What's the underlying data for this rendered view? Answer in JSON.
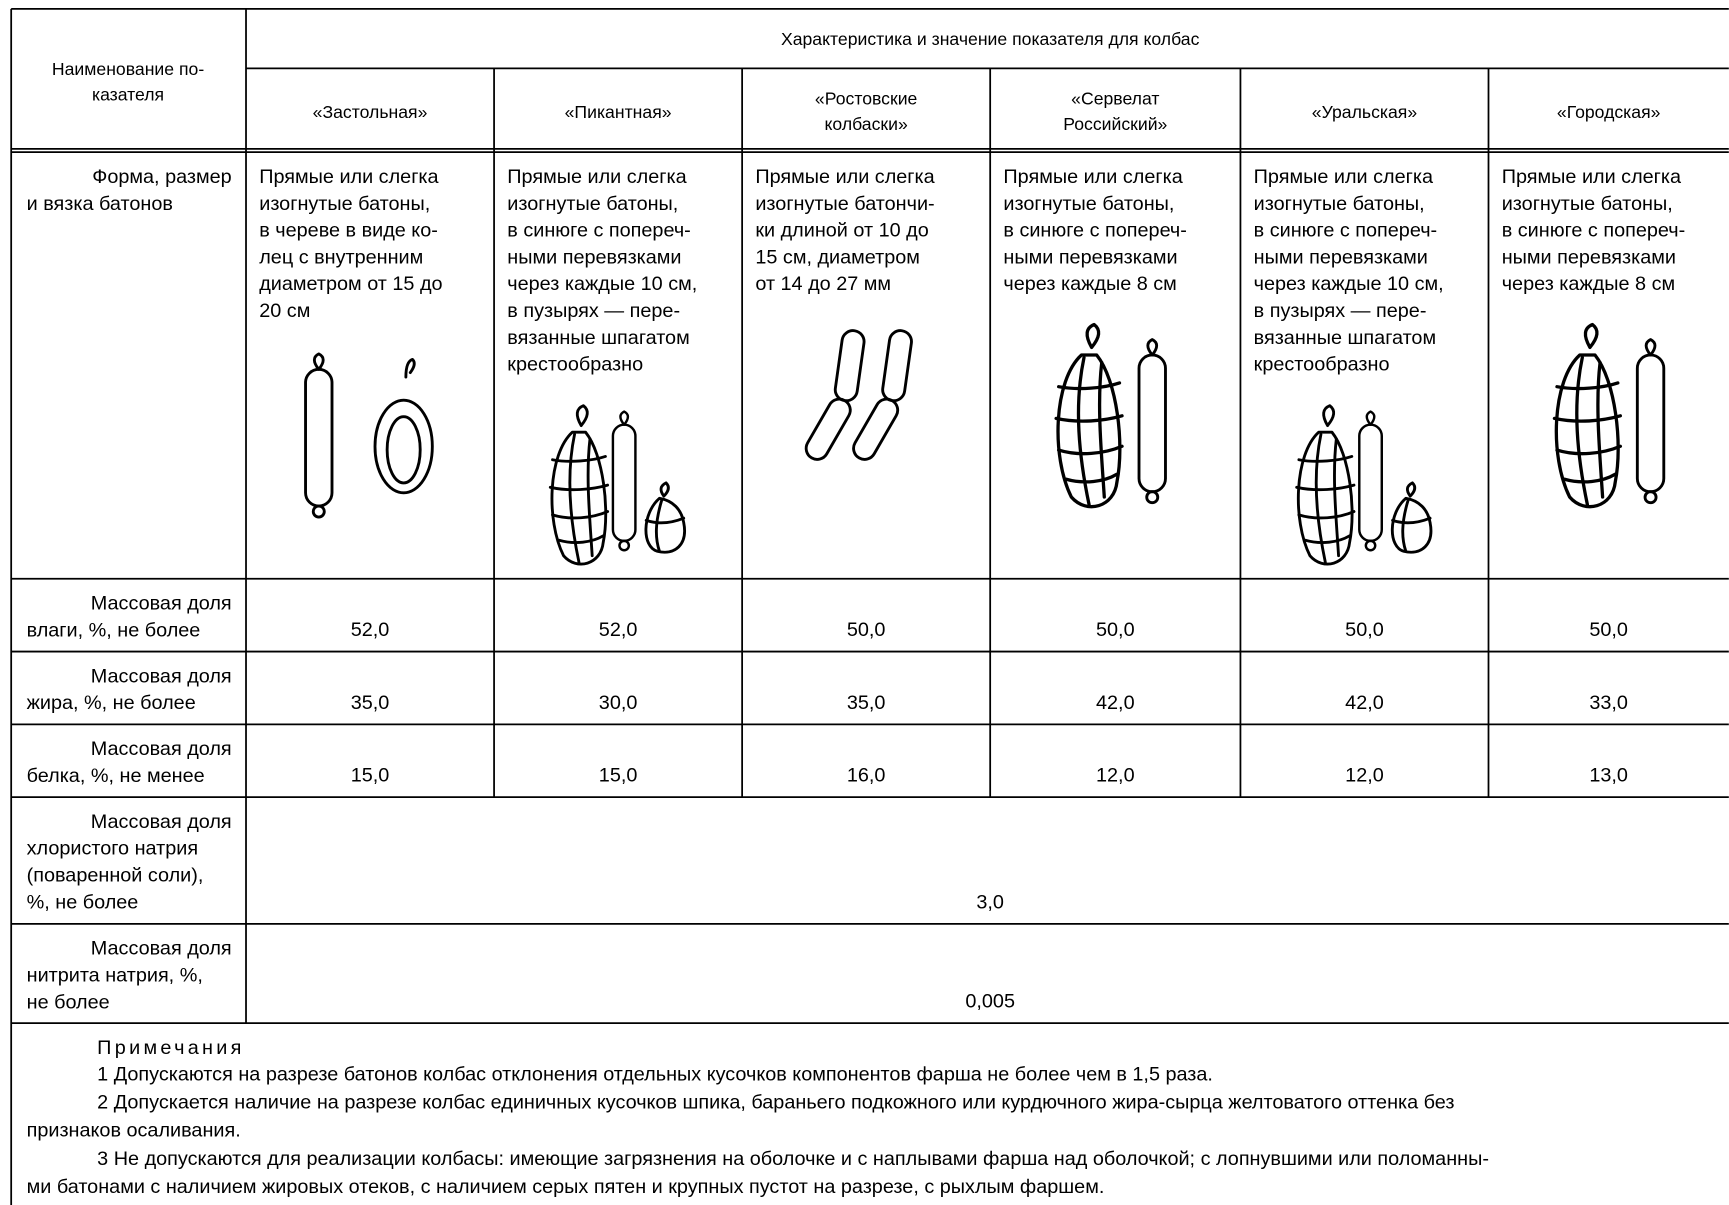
{
  "table": {
    "header": {
      "row_label": [
        "Наименование по-",
        "казателя"
      ],
      "group": "Характеристика и значение показателя для колбас",
      "columns": [
        [
          "«Застольная»"
        ],
        [
          "«Пикантная»"
        ],
        [
          "«Ростовские",
          "колбаски»"
        ],
        [
          "«Сервелат",
          "Российский»"
        ],
        [
          "«Уральская»"
        ],
        [
          "«Городская»"
        ]
      ]
    },
    "rows": [
      {
        "label": [
          "Форма, размер",
          "и вязка батонов"
        ],
        "cells": [
          [
            "Прямые или слегка",
            "изогнутые батоны,",
            "в череве в виде ко-",
            "лец с внутренним",
            "диаметром от 15 до",
            "20 см"
          ],
          [
            "Прямые или слегка",
            "изогнутые батоны,",
            "в синюге с попереч-",
            "ными перевязками",
            "через каждые 10 см,",
            "в пузырях — пере-",
            "вязанные шпагатом",
            "крестообразно"
          ],
          [
            "Прямые или слегка",
            "изогнутые батончи-",
            "ки длиной от 10 до",
            "15 см, диаметром",
            "от 14 до 27 мм"
          ],
          [
            "Прямые или слегка",
            "изогнутые батоны,",
            "в синюге с попереч-",
            "ными перевязками",
            "через каждые 8 см"
          ],
          [
            "Прямые или слегка",
            "изогнутые батоны,",
            "в синюге с попереч-",
            "ными перевязками",
            "через каждые 10 см,",
            "в пузырях — пере-",
            "вязанные шпагатом",
            "крестообразно"
          ],
          [
            "Прямые или слегка",
            "изогнутые батоны,",
            "в синюге с попереч-",
            "ными перевязками",
            "через каждые 8 см"
          ]
        ]
      },
      {
        "label": [
          "Массовая доля",
          "влаги, %, не более"
        ],
        "cells": [
          "52,0",
          "52,0",
          "50,0",
          "50,0",
          "50,0",
          "50,0"
        ]
      },
      {
        "label": [
          "Массовая доля",
          "жира, %, не более"
        ],
        "cells": [
          "35,0",
          "30,0",
          "35,0",
          "42,0",
          "42,0",
          "33,0"
        ]
      },
      {
        "label": [
          "Массовая доля",
          "белка, %, не менее"
        ],
        "cells": [
          "15,0",
          "15,0",
          "16,0",
          "12,0",
          "12,0",
          "13,0"
        ]
      },
      {
        "label": [
          "Массовая доля",
          "хлористого натрия",
          "(поваренной соли),",
          "%, не более"
        ],
        "value": "3,0"
      },
      {
        "label": [
          "Массовая доля",
          "нитрита натрия, %,",
          "не более"
        ],
        "value": "0,005"
      }
    ]
  },
  "notes": {
    "title": "Примечания",
    "items": [
      [
        "1 Допускаются на разрезе батонов колбас отклонения отдельных кусочков компонентов фарша не более чем в 1,5 раза."
      ],
      [
        "2 Допускается наличие на разрезе колбас единичных кусочков шпика, бараньего подкожного или курдючного жира-сырца желтоватого оттенка без",
        "признаков осаливания."
      ],
      [
        "3 Не допускаются для реализации колбасы: имеющие загрязнения на оболочке и с наплывами фарша над оболочкой; с лопнувшими или поломанны-",
        "ми батонами с наличием жировых отеков, с наличием серых пятен и крупных пустот на разрезе, с рыхлым фаршем."
      ]
    ]
  }
}
